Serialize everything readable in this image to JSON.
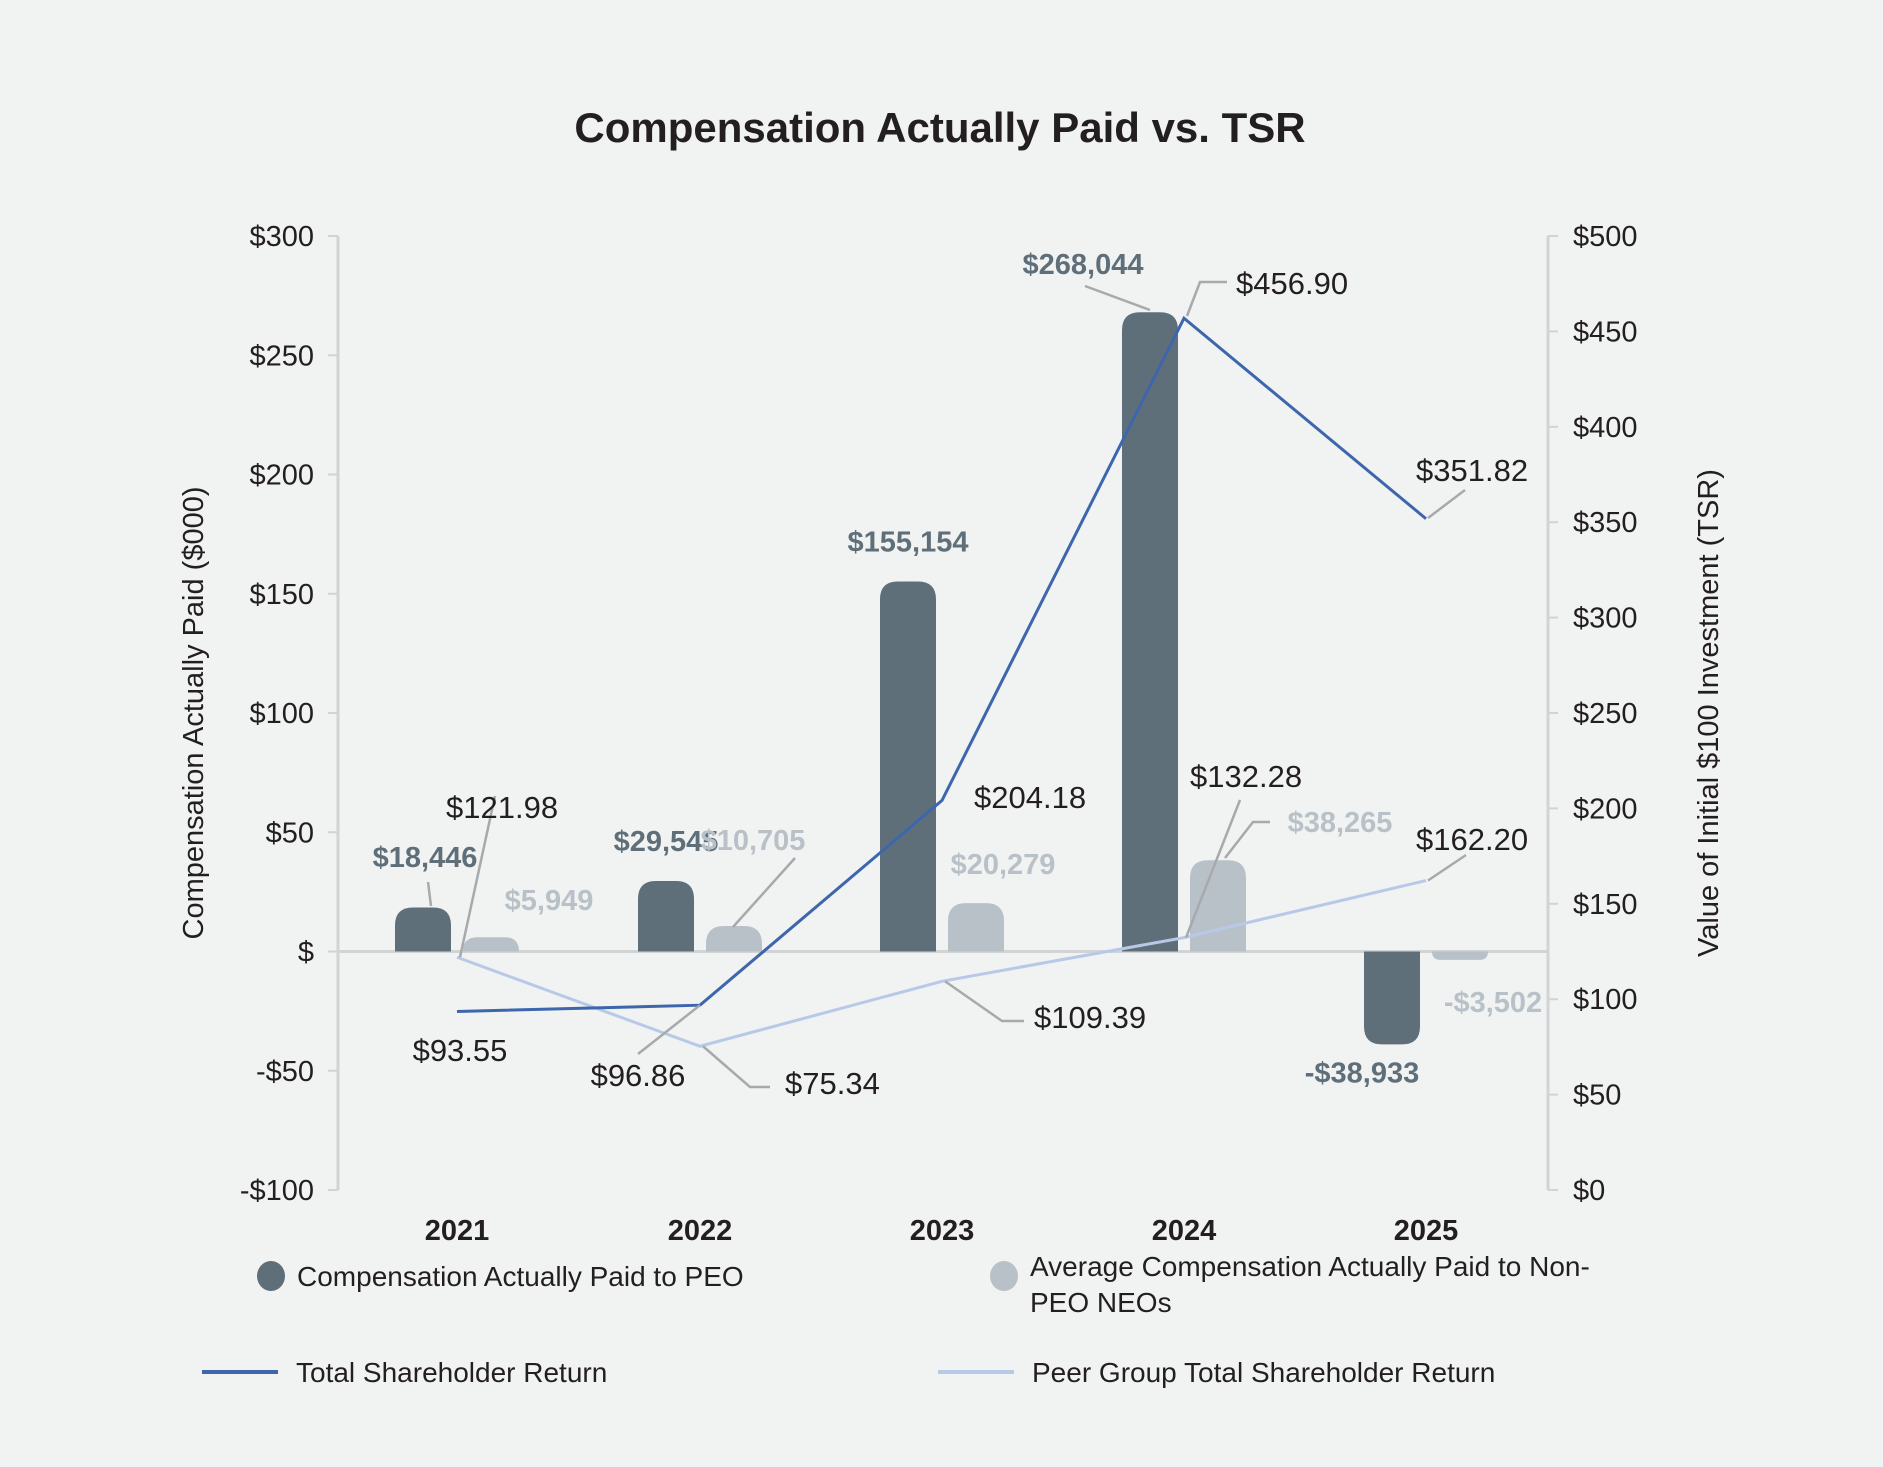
{
  "chart_data": {
    "type": "bar",
    "title": "Compensation Actually Paid vs. TSR",
    "categories": [
      "2021",
      "2022",
      "2023",
      "2024",
      "2025"
    ],
    "y_left": {
      "label": "Compensation Actually Paid ($000)",
      "range": [
        -100,
        300
      ],
      "ticks": [
        300,
        250,
        200,
        150,
        100,
        50,
        0,
        -50,
        -100
      ],
      "tick_labels": [
        "$300",
        "$250",
        "$200",
        "$150",
        "$100",
        "$50",
        "$",
        "-$50",
        "-$100"
      ]
    },
    "y_right": {
      "label": "Value of Initial $100 Investment (TSR)",
      "range": [
        0,
        500
      ],
      "ticks": [
        500,
        450,
        400,
        350,
        300,
        250,
        200,
        150,
        100,
        50,
        0
      ],
      "tick_labels": [
        "$500",
        "$450",
        "$400",
        "$350",
        "$300",
        "$250",
        "$200",
        "$150",
        "$100",
        "$50",
        "$0"
      ]
    },
    "series": [
      {
        "name": "Compensation Actually Paid to PEO",
        "type": "bar",
        "axis": "left",
        "color": "#5f6f79",
        "values": [
          18.446,
          29.545,
          155.154,
          268.044,
          -38.933
        ],
        "labels": [
          "$18,446",
          "$29,545",
          "$155,154",
          "$268,044",
          "-$38,933"
        ]
      },
      {
        "name": "Average Compensation Actually Paid to Non-PEO NEOs",
        "type": "bar",
        "axis": "left",
        "color": "#b9c1c8",
        "values": [
          5.949,
          10.705,
          20.279,
          38.265,
          -3.502
        ],
        "labels": [
          "$5,949",
          "$10,705",
          "$20,279",
          "$38,265",
          "-$3,502"
        ]
      },
      {
        "name": "Total Shareholder Return",
        "type": "line",
        "axis": "right",
        "color": "#3d66ad",
        "values": [
          93.55,
          96.86,
          204.18,
          456.9,
          351.82
        ],
        "labels": [
          "$93.55",
          "$96.86",
          "$204.18",
          "$456.90",
          "$351.82"
        ]
      },
      {
        "name": "Peer Group Total Shareholder Return",
        "type": "line",
        "axis": "right",
        "color": "#b8c9e8",
        "values": [
          121.98,
          75.34,
          109.39,
          132.28,
          162.2
        ],
        "labels": [
          "$121.98",
          "$75.34",
          "$109.39",
          "$132.28",
          "$162.20"
        ]
      }
    ],
    "legend": {
      "placement": "bottom",
      "items": [
        {
          "label_lines": [
            "Compensation Actually Paid to PEO"
          ],
          "symbol": "circle",
          "color": "#5f6f79"
        },
        {
          "label_lines": [
            "Average Compensation Actually Paid to Non-",
            "PEO NEOs"
          ],
          "symbol": "circle",
          "color": "#b9c1c8"
        },
        {
          "label_lines": [
            "Total Shareholder Return"
          ],
          "symbol": "line",
          "color": "#3d66ad"
        },
        {
          "label_lines": [
            "Peer Group Total Shareholder Return"
          ],
          "symbol": "line",
          "color": "#b8c9e8"
        }
      ]
    },
    "grid": false,
    "colors": {
      "background": "#f1f2f2",
      "axis": "#d1d3d4",
      "leader": "#a7a9ac",
      "text": "#231f20"
    }
  }
}
